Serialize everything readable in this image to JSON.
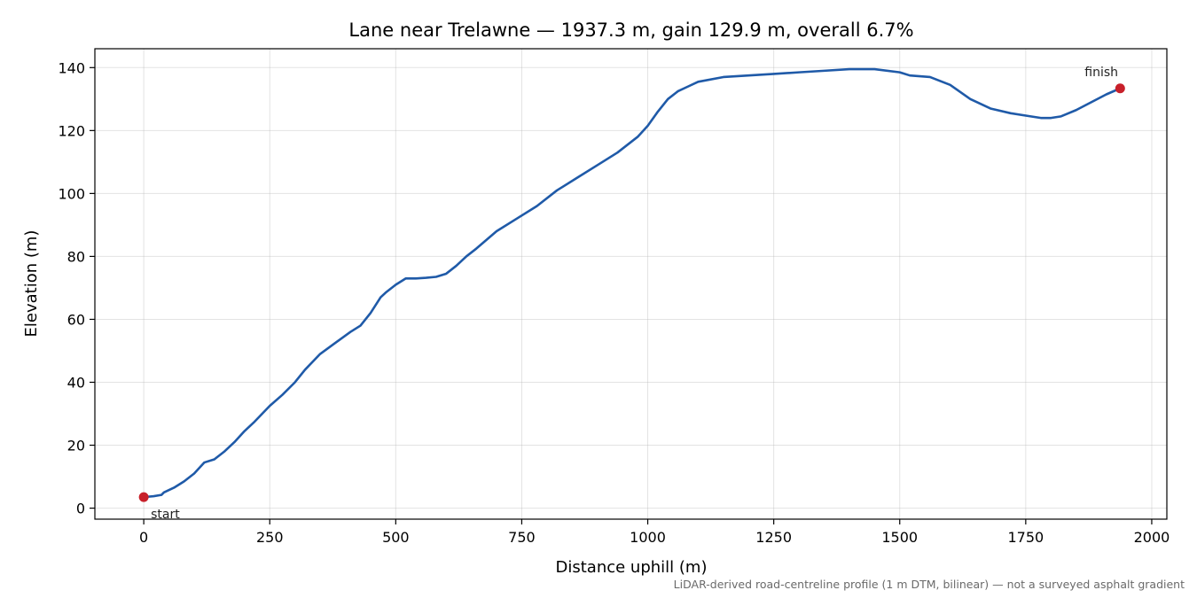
{
  "chart_data": {
    "type": "line",
    "title": "Lane near Trelawne — 1937.3 m, gain 129.9 m, overall 6.7%",
    "xlabel": "Distance uphill (m)",
    "ylabel": "Elevation (m)",
    "xlim": [
      -97,
      2030
    ],
    "ylim": [
      -3.5,
      146
    ],
    "xticks": [
      0,
      250,
      500,
      750,
      1000,
      1250,
      1500,
      1750,
      2000
    ],
    "yticks": [
      0,
      20,
      40,
      60,
      80,
      100,
      120,
      140
    ],
    "grid": true,
    "line_color": "#1f5aa8",
    "marker_color": "#c8202a",
    "series": [
      {
        "x": [
          0,
          20,
          35,
          40,
          60,
          80,
          100,
          120,
          140,
          160,
          180,
          200,
          220,
          250,
          275,
          300,
          320,
          350,
          380,
          410,
          430,
          450,
          470,
          480,
          500,
          520,
          540,
          560,
          580,
          600,
          620,
          640,
          660,
          700,
          740,
          780,
          820,
          860,
          900,
          940,
          980,
          1000,
          1020,
          1040,
          1060,
          1080,
          1100,
          1150,
          1200,
          1250,
          1300,
          1350,
          1400,
          1450,
          1500,
          1520,
          1560,
          1600,
          1640,
          1680,
          1720,
          1760,
          1780,
          1800,
          1820,
          1850,
          1880,
          1910,
          1937.3
        ],
        "y": [
          3.5,
          3.8,
          4.2,
          5.0,
          6.5,
          8.5,
          11.0,
          14.5,
          15.5,
          18.0,
          21.0,
          24.5,
          27.5,
          32.5,
          36.0,
          40.0,
          44.0,
          49.0,
          52.5,
          56.0,
          58.0,
          62.0,
          67.0,
          68.5,
          71.0,
          73.0,
          73.0,
          73.2,
          73.5,
          74.5,
          77.0,
          80.0,
          82.5,
          88.0,
          92.0,
          96.0,
          101.0,
          105.0,
          109.0,
          113.0,
          118.0,
          121.5,
          126.0,
          130.0,
          132.5,
          134.0,
          135.5,
          137.0,
          137.5,
          138.0,
          138.5,
          139.0,
          139.5,
          139.5,
          138.5,
          137.5,
          137.0,
          134.5,
          130.0,
          127.0,
          125.5,
          124.5,
          124.0,
          124.0,
          124.5,
          126.5,
          129.0,
          131.5,
          133.4
        ]
      }
    ],
    "annotations": [
      {
        "text": "start",
        "x": 0,
        "y": 3.5
      },
      {
        "text": "finish",
        "x": 1937.3,
        "y": 133.4
      }
    ],
    "footnote": "LiDAR-derived road-centreline profile (1 m DTM, bilinear) — not a surveyed asphalt gradient"
  }
}
